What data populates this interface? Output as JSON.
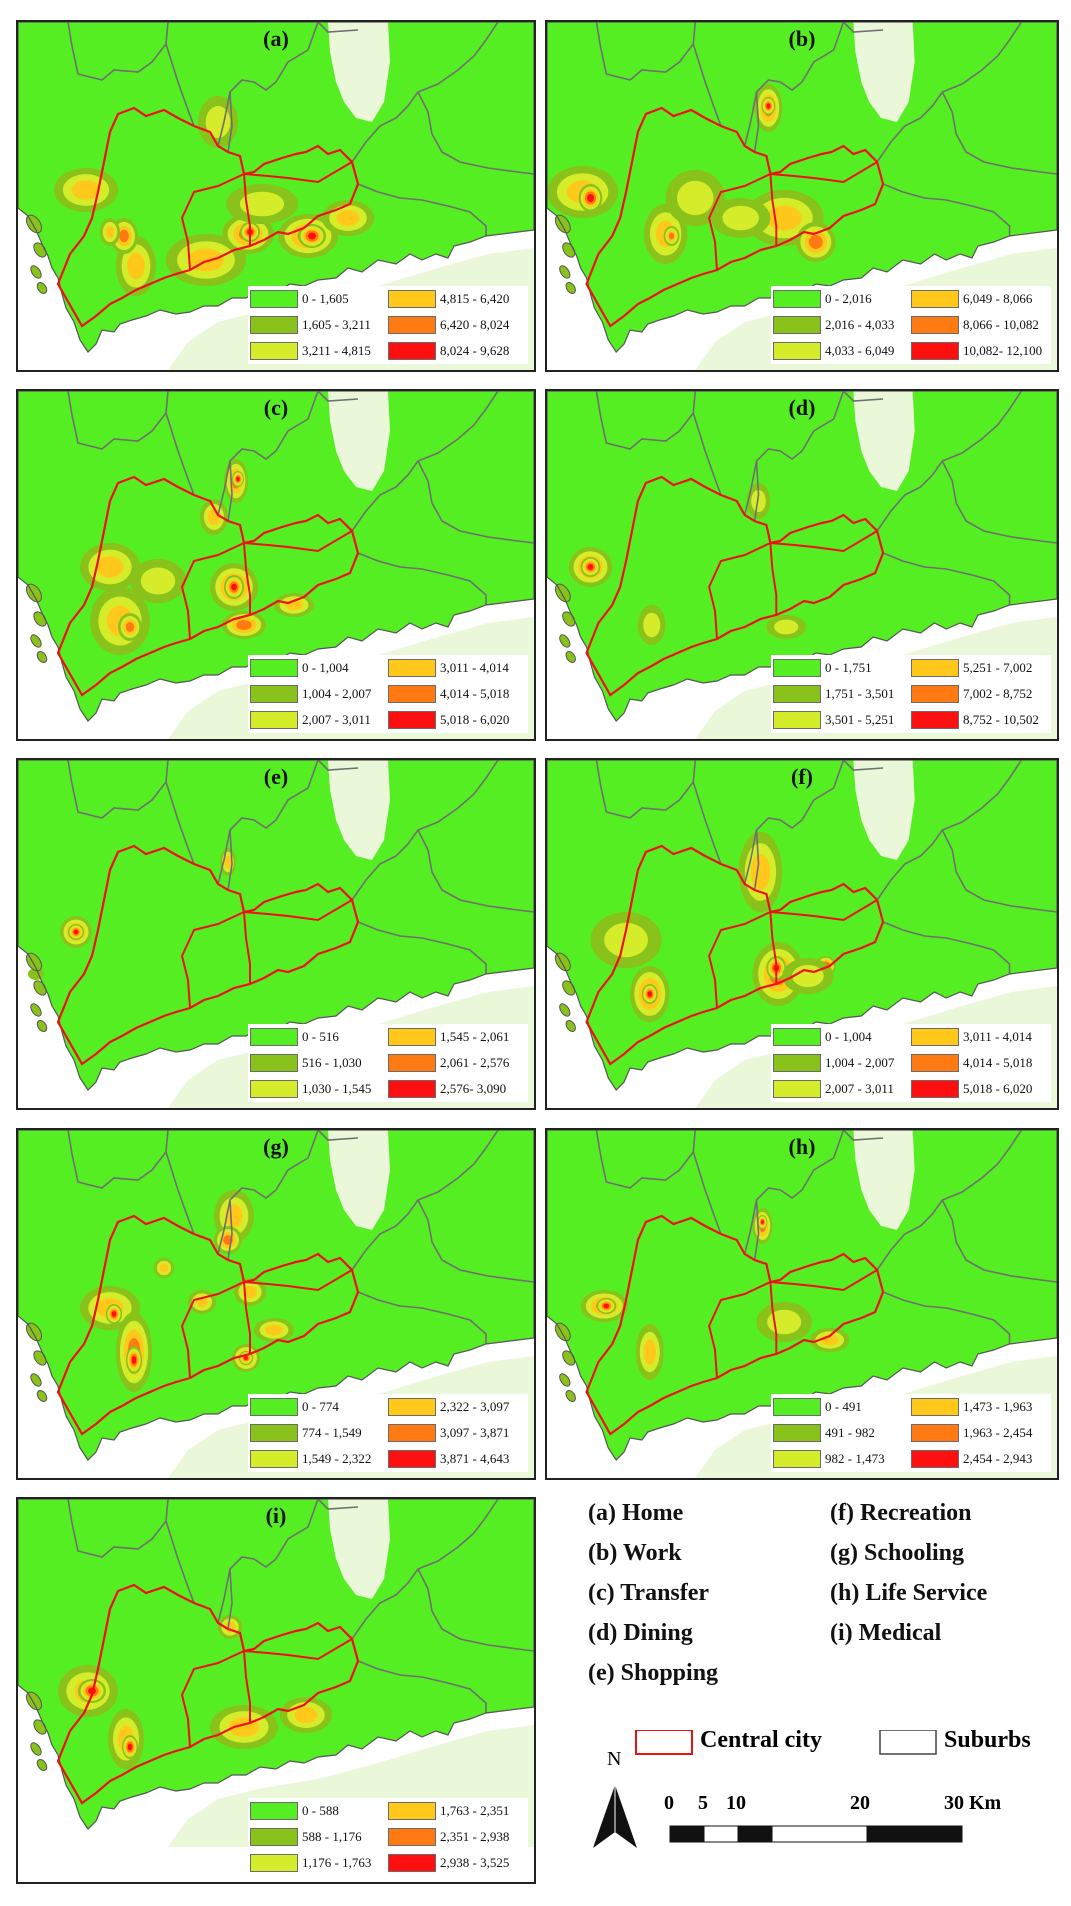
{
  "panels": [
    {
      "label": "(a)",
      "legend": [
        "0 - 1,605",
        "1,605 - 3,211",
        "3,211 - 4,815",
        "4,815 - 6,420",
        "6,420 - 8,024",
        "8,024 - 9,628"
      ]
    },
    {
      "label": "(b)",
      "legend": [
        "0 - 2,016",
        "2,016 - 4,033",
        "4,033 - 6,049",
        "6,049 - 8,066",
        "8,066 - 10,082",
        "10,082- 12,100"
      ]
    },
    {
      "label": "(c)",
      "legend": [
        "0 - 1,004",
        "1,004 - 2,007",
        "2,007 - 3,011",
        "3,011 - 4,014",
        "4,014 - 5,018",
        "5,018 - 6,020"
      ]
    },
    {
      "label": "(d)",
      "legend": [
        "0 - 1,751",
        "1,751 - 3,501",
        "3,501 - 5,251",
        "5,251 - 7,002",
        "7,002 - 8,752",
        "8,752 - 10,502"
      ]
    },
    {
      "label": "(e)",
      "legend": [
        "0 - 516",
        "516 - 1,030",
        "1,030 - 1,545",
        "1,545 - 2,061",
        "2,061 - 2,576",
        "2,576- 3,090"
      ]
    },
    {
      "label": "(f)",
      "legend": [
        "0 - 1,004",
        "1,004 - 2,007",
        "2,007 - 3,011",
        "3,011 - 4,014",
        "4,014 - 5,018",
        "5,018 - 6,020"
      ]
    },
    {
      "label": "(g)",
      "legend": [
        "0 - 774",
        "774 - 1,549",
        "1,549 - 2,322",
        "2,322 - 3,097",
        "3,097 - 3,871",
        "3,871 - 4,643"
      ]
    },
    {
      "label": "(h)",
      "legend": [
        "0 - 491",
        "491 - 982",
        "982 - 1,473",
        "1,473 - 1,963",
        "1,963 - 2,454",
        "2,454 - 2,943"
      ]
    },
    {
      "label": "(i)",
      "legend": [
        "0 - 588",
        "588 - 1,176",
        "1,176 - 1,763",
        "1,763 - 2,351",
        "2,351 - 2,938",
        "2,938 - 3,525"
      ]
    }
  ],
  "class_colors": [
    "#55ee22",
    "#88c21a",
    "#d4ec2a",
    "#ffc81a",
    "#ff7a12",
    "#ff1010"
  ],
  "colors": {
    "central_city_outline": "#ee1111",
    "suburb_fill": "#eaf7d8",
    "sea": "#ffffff",
    "district_line": "#6f6f6f"
  },
  "activities": [
    "(a) Home",
    "(b) Work",
    "(c) Transfer",
    "(d) Dining",
    "(e) Shopping",
    "(f) Recreation",
    "(g) Schooling",
    "(h) Life Service",
    "(i) Medical"
  ],
  "legend": {
    "central_city": "Central city",
    "suburbs": "Suburbs",
    "north": "N"
  },
  "scale_bar": {
    "ticks": [
      "0",
      "5",
      "10",
      "20",
      "30 Km"
    ]
  }
}
